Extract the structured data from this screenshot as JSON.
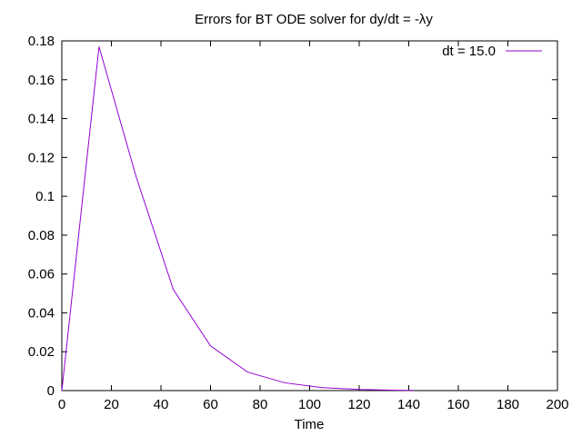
{
  "chart_data": {
    "type": "line",
    "title": "Errors for BT ODE solver for dy/dt = -λy",
    "xlabel": "Time",
    "ylabel": "",
    "xlim": [
      0,
      200
    ],
    "ylim": [
      0,
      0.18
    ],
    "x_ticks": [
      0,
      20,
      40,
      60,
      80,
      100,
      120,
      140,
      160,
      180,
      200
    ],
    "y_ticks": [
      0,
      0.02,
      0.04,
      0.06,
      0.08,
      0.1,
      0.12,
      0.14,
      0.16,
      0.18
    ],
    "x_tick_labels": [
      "0",
      "20",
      "40",
      "60",
      "80",
      "100",
      "120",
      "140",
      "160",
      "180",
      "200"
    ],
    "y_tick_labels": [
      "0",
      "0.02",
      "0.04",
      "0.06",
      "0.08",
      "0.1",
      "0.12",
      "0.14",
      "0.16",
      "0.18"
    ],
    "grid": false,
    "legend_position": "top-right",
    "series": [
      {
        "name": "dt = 15.0",
        "color": "#9400d3",
        "x": [
          0,
          15,
          30,
          45,
          60,
          75,
          90,
          105,
          120,
          135,
          142
        ],
        "y": [
          0,
          0.177,
          0.11,
          0.052,
          0.023,
          0.0095,
          0.004,
          0.0015,
          0.0006,
          0.0002,
          0.0001
        ]
      }
    ]
  }
}
